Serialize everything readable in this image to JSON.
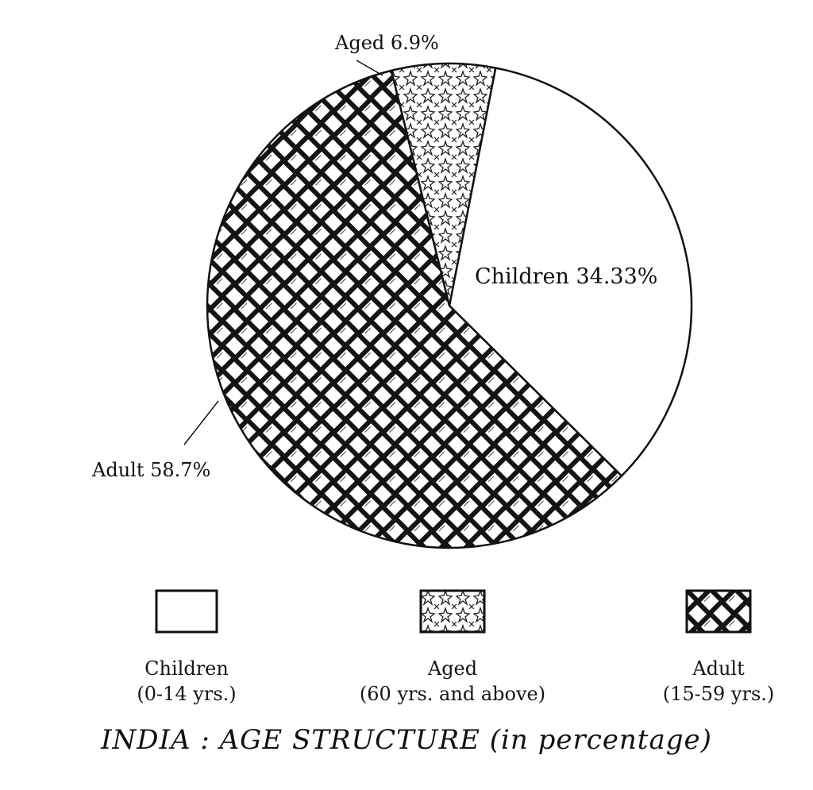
{
  "chart_data": {
    "type": "pie",
    "title": "INDIA : AGE STRUCTURE (in percentage)",
    "slices": [
      {
        "label": "Children",
        "slice_label": "Children 34.33%",
        "value": 34.33,
        "fill": "blank",
        "legend_label": "Children",
        "legend_sub": "(0-14 yrs.)"
      },
      {
        "label": "Adult",
        "slice_label": "Adult 58.7%",
        "value": 58.7,
        "fill": "weave",
        "legend_label": "Adult",
        "legend_sub": "(15-59 yrs.)"
      },
      {
        "label": "Aged",
        "slice_label": "Aged 6.9%",
        "value": 6.9,
        "fill": "star",
        "legend_label": "Aged",
        "legend_sub": "(60 yrs. and above)"
      }
    ],
    "legend_placement": "bottom",
    "colors": {
      "ink": "#111111",
      "paper": "#ffffff"
    }
  }
}
